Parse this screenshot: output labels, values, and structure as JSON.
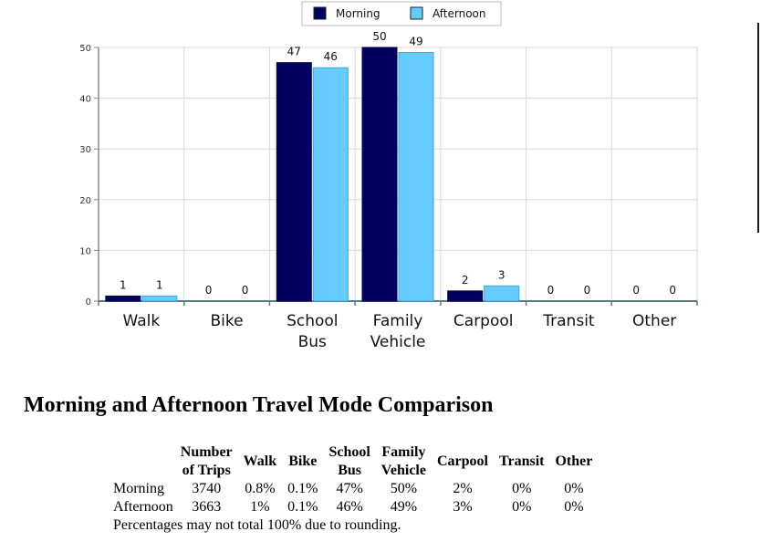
{
  "chart_data": {
    "type": "bar",
    "categories": [
      "Walk",
      "Bike",
      "School Bus",
      "Family Vehicle",
      "Carpool",
      "Transit",
      "Other"
    ],
    "category_lines": [
      [
        "Walk"
      ],
      [
        "Bike"
      ],
      [
        "School",
        "Bus"
      ],
      [
        "Family",
        "Vehicle"
      ],
      [
        "Carpool"
      ],
      [
        "Transit"
      ],
      [
        "Other"
      ]
    ],
    "series": [
      {
        "name": "Morning",
        "color": "#00005f",
        "values": [
          1,
          0,
          47,
          50,
          2,
          0,
          0
        ]
      },
      {
        "name": "Afternoon",
        "color": "#66ccff",
        "values": [
          1,
          0,
          46,
          49,
          3,
          0,
          0
        ]
      }
    ],
    "ylim": [
      0,
      50
    ],
    "yticks": [
      0,
      10,
      20,
      30,
      40,
      50
    ],
    "grid": true,
    "legend_position": "top-center",
    "data_labels": true
  },
  "report": {
    "title": "Morning and Afternoon Travel Mode Comparison",
    "table": {
      "header_number_line1": "Number",
      "header_number_line2": "of Trips",
      "headers": [
        {
          "line1": "Walk",
          "line2": ""
        },
        {
          "line1": "Bike",
          "line2": ""
        },
        {
          "line1": "School",
          "line2": "Bus"
        },
        {
          "line1": "Family",
          "line2": "Vehicle"
        },
        {
          "line1": "Carpool",
          "line2": ""
        },
        {
          "line1": "Transit",
          "line2": ""
        },
        {
          "line1": "Other",
          "line2": ""
        }
      ],
      "rows": [
        {
          "label": "Morning",
          "trips": "3740",
          "values": [
            "0.8%",
            "0.1%",
            "47%",
            "50%",
            "2%",
            "0%",
            "0%"
          ]
        },
        {
          "label": "Afternoon",
          "trips": "3663",
          "values": [
            "1%",
            "0.1%",
            "46%",
            "49%",
            "3%",
            "0%",
            "0%"
          ]
        }
      ],
      "note": "Percentages may not total 100% due to rounding."
    }
  }
}
